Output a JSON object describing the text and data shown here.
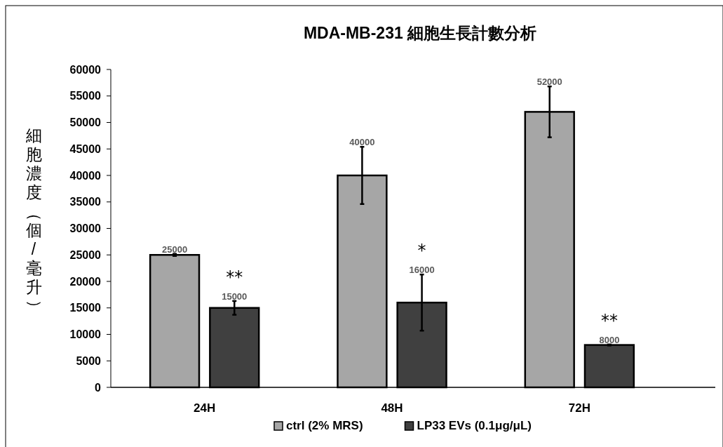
{
  "chart_data": {
    "type": "bar",
    "title": "MDA-MB-231 細胞生長計數分析",
    "ylabel": "細胞濃度（個/毫升）",
    "categories": [
      "24H",
      "48H",
      "72H"
    ],
    "series": [
      {
        "name": "ctrl (2% MRS)",
        "color": "#a6a6a6",
        "values": [
          25000,
          40000,
          52000
        ],
        "errors": [
          200,
          5400,
          4800
        ]
      },
      {
        "name": "LP33 EVs (0.1μg/μL)",
        "color": "#404040",
        "values": [
          15000,
          16000,
          8000
        ],
        "errors": [
          1300,
          5300,
          100
        ]
      }
    ],
    "ylim": [
      0,
      60000
    ],
    "yticks": [
      0,
      5000,
      10000,
      15000,
      20000,
      25000,
      30000,
      35000,
      40000,
      45000,
      50000,
      55000,
      60000
    ],
    "data_labels": true,
    "legend": "bottom",
    "grid": false,
    "annotations": [
      "**",
      "*",
      "**"
    ]
  }
}
